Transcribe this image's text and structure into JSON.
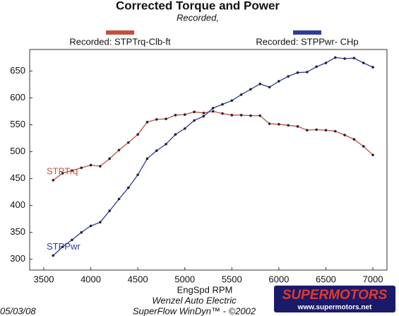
{
  "chart_data": {
    "type": "line",
    "title": "Corrected Torque and Power",
    "subtitle": "Recorded,",
    "xlabel": "EngSpd  RPM",
    "x": [
      3600,
      3700,
      3800,
      3900,
      4000,
      4100,
      4200,
      4300,
      4400,
      4500,
      4600,
      4700,
      4800,
      4900,
      5000,
      5100,
      5200,
      5300,
      5400,
      5500,
      5600,
      5700,
      5800,
      5900,
      6000,
      6100,
      6200,
      6300,
      6400,
      6500,
      6600,
      6700,
      6800,
      6900,
      7000
    ],
    "series": [
      {
        "name": "Recorded: STPTrq-Clb-ft",
        "label": "STPTrq",
        "color": "#c4503c",
        "values": [
          447,
          460,
          465,
          470,
          475,
          473,
          487,
          503,
          517,
          532,
          555,
          560,
          561,
          568,
          569,
          574,
          572,
          575,
          571,
          568,
          568,
          567,
          567,
          552,
          551,
          549,
          547,
          540,
          541,
          540,
          538,
          531,
          523,
          510,
          494
        ]
      },
      {
        "name": "Recorded: STPPwr- CHp",
        "label": "STPPwr",
        "color": "#2c3c9c",
        "values": [
          307,
          323,
          336,
          350,
          362,
          369,
          390,
          412,
          433,
          457,
          487,
          502,
          514,
          532,
          543,
          558,
          566,
          581,
          588,
          595,
          606,
          616,
          626,
          620,
          631,
          640,
          647,
          648,
          658,
          665,
          675,
          673,
          674,
          665,
          657
        ]
      }
    ],
    "xlim": [
      3350,
      7150
    ],
    "xticks": [
      3500,
      4000,
      4500,
      5000,
      5500,
      6000,
      6500,
      7000
    ],
    "ylim": [
      280,
      690
    ],
    "yticks": [
      300,
      350,
      400,
      450,
      500,
      550,
      600,
      650
    ],
    "grid": false,
    "footer": [
      "Wenzel Auto Electric",
      "SuperFlow WinDyn™ - ©2002"
    ],
    "date": "05/03/08",
    "watermark": "SUPERMOTORS",
    "watermark_url": "www.supermotors.net"
  }
}
